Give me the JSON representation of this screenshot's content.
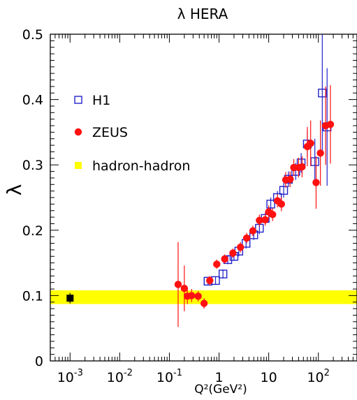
{
  "chart_data": {
    "type": "scatter",
    "title": "λ HERA",
    "xlabel": "Q²(GeV²)",
    "ylabel": "λ",
    "xscale": "log",
    "xlim": [
      0.0004,
      600
    ],
    "ylim": [
      0,
      0.5
    ],
    "grid": false,
    "legend_position": "top-left",
    "x_tick_labels": [
      {
        "x": 0.001,
        "base": "10",
        "exp": "-3"
      },
      {
        "x": 0.01,
        "base": "10",
        "exp": "-2"
      },
      {
        "x": 0.1,
        "base": "10",
        "exp": "-1"
      },
      {
        "x": 1,
        "base": "1",
        "exp": ""
      },
      {
        "x": 10,
        "base": "10",
        "exp": ""
      },
      {
        "x": 100,
        "base": "10",
        "exp": "2"
      }
    ],
    "y_tick_labels": [
      {
        "y": 0,
        "label": "0"
      },
      {
        "y": 0.1,
        "label": "0.1"
      },
      {
        "y": 0.2,
        "label": "0.2"
      },
      {
        "y": 0.3,
        "label": "0.3"
      },
      {
        "y": 0.4,
        "label": "0.4"
      },
      {
        "y": 0.5,
        "label": "0.5"
      }
    ],
    "band": {
      "name": "hadron-hadron",
      "ymin": 0.087,
      "ymax": 0.108,
      "color": "#ffff00"
    },
    "hadron_point": {
      "x": 0.001,
      "y": 0.096,
      "err": 0.008,
      "color": "#000000"
    },
    "series": [
      {
        "name": "H1",
        "marker": "open-square",
        "color": "#2222cc",
        "points": [
          {
            "x": 0.6,
            "y": 0.122,
            "err": 0.006
          },
          {
            "x": 0.85,
            "y": 0.123,
            "err": 0.006
          },
          {
            "x": 1.2,
            "y": 0.133,
            "err": 0.007
          },
          {
            "x": 1.5,
            "y": 0.155,
            "err": 0.007
          },
          {
            "x": 2.0,
            "y": 0.16,
            "err": 0.007
          },
          {
            "x": 2.5,
            "y": 0.168,
            "err": 0.008
          },
          {
            "x": 3.5,
            "y": 0.18,
            "err": 0.008
          },
          {
            "x": 5.0,
            "y": 0.193,
            "err": 0.008
          },
          {
            "x": 6.5,
            "y": 0.203,
            "err": 0.009
          },
          {
            "x": 8.5,
            "y": 0.218,
            "err": 0.009
          },
          {
            "x": 11,
            "y": 0.24,
            "err": 0.01
          },
          {
            "x": 15,
            "y": 0.25,
            "err": 0.01
          },
          {
            "x": 20,
            "y": 0.261,
            "err": 0.011
          },
          {
            "x": 25,
            "y": 0.278,
            "err": 0.012
          },
          {
            "x": 35,
            "y": 0.29,
            "err": 0.013
          },
          {
            "x": 45,
            "y": 0.303,
            "err": 0.015
          },
          {
            "x": 60,
            "y": 0.332,
            "err": 0.02
          },
          {
            "x": 85,
            "y": 0.305,
            "err": 0.035
          },
          {
            "x": 120,
            "y": 0.41,
            "err": 0.09
          },
          {
            "x": 150,
            "y": 0.358,
            "err": 0.09
          }
        ]
      },
      {
        "name": "ZEUS",
        "marker": "filled-circle",
        "color": "#ff1111",
        "points": [
          {
            "x": 0.15,
            "y": 0.117,
            "err": 0.065
          },
          {
            "x": 0.2,
            "y": 0.111,
            "err": 0.035
          },
          {
            "x": 0.23,
            "y": 0.099,
            "err": 0.012
          },
          {
            "x": 0.28,
            "y": 0.1,
            "err": 0.01
          },
          {
            "x": 0.38,
            "y": 0.099,
            "err": 0.008
          },
          {
            "x": 0.5,
            "y": 0.088,
            "err": 0.008
          },
          {
            "x": 0.65,
            "y": 0.123,
            "err": 0.007
          },
          {
            "x": 0.9,
            "y": 0.148,
            "err": 0.007
          },
          {
            "x": 1.3,
            "y": 0.156,
            "err": 0.007
          },
          {
            "x": 1.9,
            "y": 0.165,
            "err": 0.007
          },
          {
            "x": 2.7,
            "y": 0.174,
            "err": 0.008
          },
          {
            "x": 3.6,
            "y": 0.188,
            "err": 0.008
          },
          {
            "x": 4.8,
            "y": 0.199,
            "err": 0.008
          },
          {
            "x": 6.5,
            "y": 0.215,
            "err": 0.009
          },
          {
            "x": 8.5,
            "y": 0.216,
            "err": 0.009
          },
          {
            "x": 10,
            "y": 0.228,
            "err": 0.01
          },
          {
            "x": 12,
            "y": 0.224,
            "err": 0.01
          },
          {
            "x": 15,
            "y": 0.245,
            "err": 0.01
          },
          {
            "x": 18,
            "y": 0.24,
            "err": 0.011
          },
          {
            "x": 22,
            "y": 0.277,
            "err": 0.012
          },
          {
            "x": 27,
            "y": 0.278,
            "err": 0.012
          },
          {
            "x": 32,
            "y": 0.296,
            "err": 0.013
          },
          {
            "x": 40,
            "y": 0.296,
            "err": 0.015
          },
          {
            "x": 47,
            "y": 0.297,
            "err": 0.016
          },
          {
            "x": 60,
            "y": 0.328,
            "err": 0.03
          },
          {
            "x": 70,
            "y": 0.333,
            "err": 0.035
          },
          {
            "x": 90,
            "y": 0.273,
            "err": 0.04
          },
          {
            "x": 110,
            "y": 0.318,
            "err": 0.05
          },
          {
            "x": 140,
            "y": 0.36,
            "err": 0.06
          },
          {
            "x": 175,
            "y": 0.362,
            "err": 0.06
          }
        ]
      }
    ]
  }
}
